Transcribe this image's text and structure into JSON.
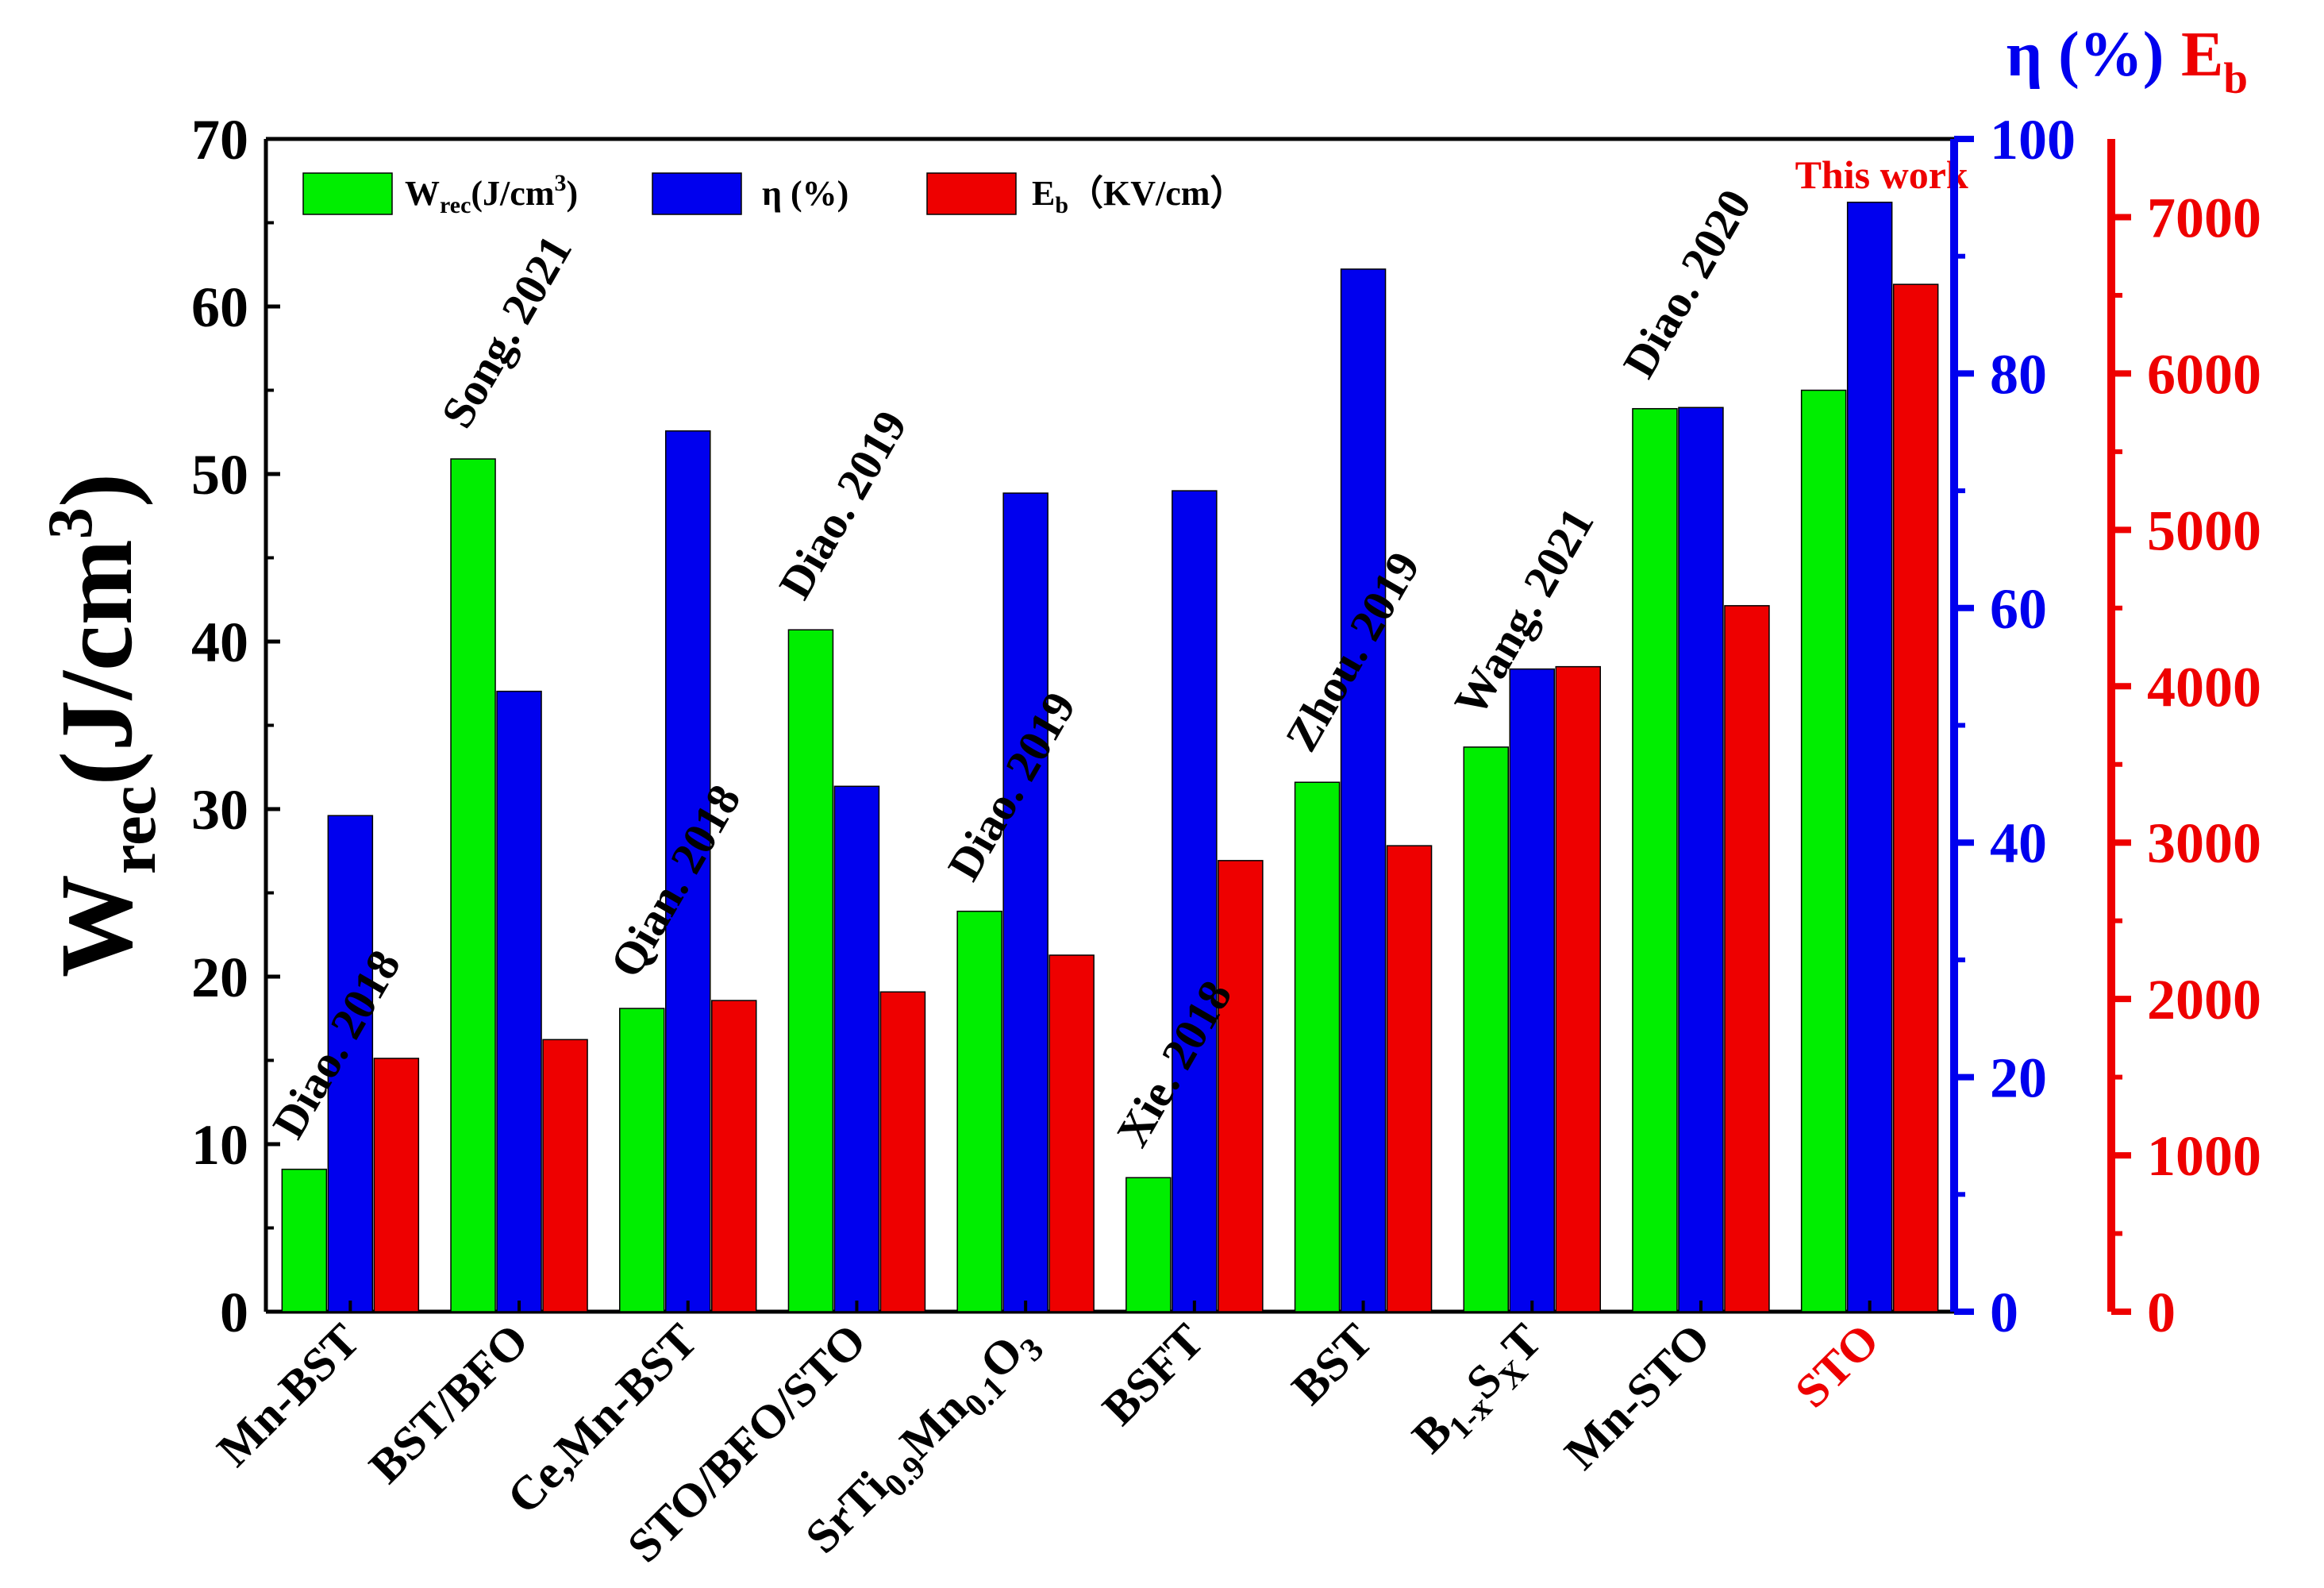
{
  "colors": {
    "wrec": "#00ee00",
    "eta": "#0000ee",
    "eb": "#ee0000",
    "axis": "#000000",
    "highlight": "#ee0000"
  },
  "chart_data": {
    "type": "bar",
    "title": "",
    "categories": [
      "Mn-BST",
      "BST/BFO",
      "Ce,Mn-BST",
      "STO/BFO/STO",
      "SrTi0.9Mn0.1O3",
      "BSFT",
      "BST",
      "B1-xSxT",
      "Mn-STO",
      "STO"
    ],
    "category_labels": [
      {
        "base": "Mn-BST"
      },
      {
        "base": "BST/BFO"
      },
      {
        "base": "Ce,Mn-BST"
      },
      {
        "base": "STO/BFO/STO"
      },
      {
        "base": "SrTi",
        "sub1": "0.9",
        "mid": "Mn",
        "sub2": "0.1",
        "tail": "O",
        "sub3": "3"
      },
      {
        "base": "BSFT"
      },
      {
        "base": "BST"
      },
      {
        "base": "B",
        "sub1": "1-x",
        "mid": "S",
        "sub2": "X",
        "tail": "T"
      },
      {
        "base": "Mn-STO"
      },
      {
        "base": "STO",
        "highlight": true
      }
    ],
    "annotations": [
      "Diao. 2018",
      "Song. 2021",
      "Qian. 2018",
      "Diao. 2019",
      "Diao. 2019",
      "Xie. 2018",
      "Zhou. 2019",
      "Wang. 2021",
      "Diao. 2020",
      "This work"
    ],
    "series": [
      {
        "name": "Wrec(J/cm3)",
        "axis": "left",
        "values": [
          8.5,
          50.9,
          18.1,
          40.7,
          23.9,
          8.0,
          31.6,
          33.7,
          53.9,
          55.0
        ]
      },
      {
        "name": "η (%)",
        "axis": "right1",
        "values": [
          42.3,
          52.9,
          75.1,
          44.8,
          69.8,
          70.0,
          88.9,
          54.8,
          77.1,
          94.6
        ]
      },
      {
        "name": "Eb (KV/cm)",
        "axis": "right2",
        "values": [
          1620,
          1740,
          1990,
          2045,
          2280,
          2885,
          2980,
          4125,
          4515,
          6570
        ]
      }
    ],
    "legend": {
      "wrec": {
        "main": "W",
        "sub": "rec",
        "rest": "(J/cm",
        "sup": "3",
        "close": ")"
      },
      "eta": {
        "main": "η  (%)"
      },
      "eb": {
        "main": "E",
        "sub": "b",
        "rest": "（KV/cm）"
      },
      "position": "top-left"
    },
    "y_left": {
      "label_main": "W",
      "label_sub": "rec",
      "label_rest": "(J/cm",
      "label_sup": "3",
      "label_close": ")",
      "lim": [
        0,
        70
      ],
      "ticks": [
        0,
        10,
        20,
        30,
        40,
        50,
        60,
        70
      ]
    },
    "y_right1": {
      "label": "η (%)",
      "lim": [
        0,
        100
      ],
      "ticks": [
        0,
        20,
        40,
        60,
        80,
        100
      ]
    },
    "y_right2": {
      "label_main": "E",
      "label_sub": "b",
      "lim": [
        0,
        7500
      ],
      "ticks": [
        0,
        1000,
        2000,
        3000,
        4000,
        5000,
        6000,
        7000
      ]
    }
  }
}
